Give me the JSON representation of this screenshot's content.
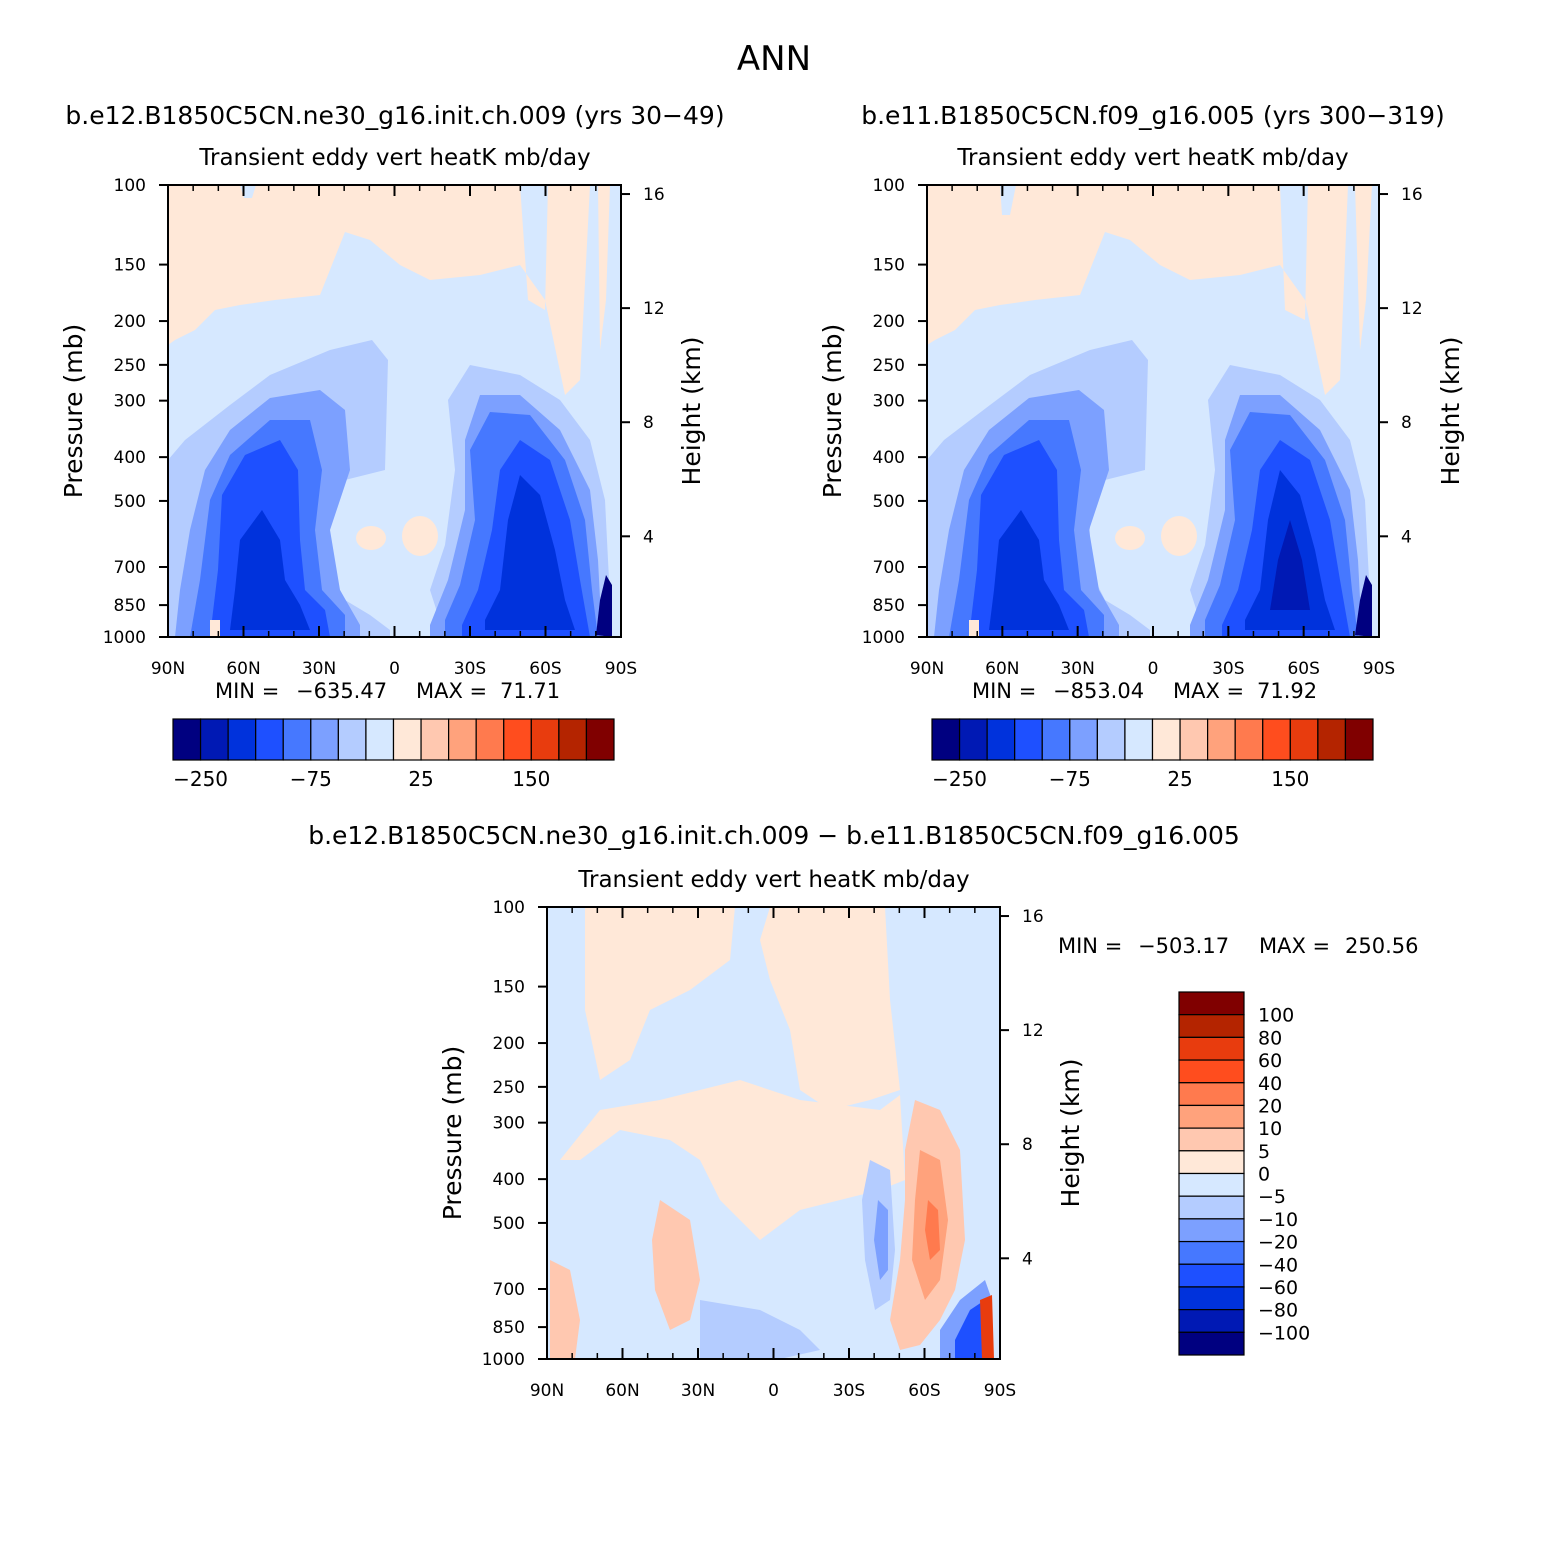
{
  "figure": {
    "title": "ANN"
  },
  "chart_data": [
    {
      "type": "heatmap",
      "id": "left",
      "case_title": "b.e12.B1850C5CN.ne30_g16.init.ch.009 (yrs 30−49)",
      "title": "Transient eddy vert heatK mb/day",
      "ylabel": "Pressure (mb)",
      "ylabel_right": "Height (km)",
      "x_ticks": [
        "90N",
        "60N",
        "30N",
        "0",
        "30S",
        "60S",
        "90S"
      ],
      "x_values": [
        90,
        60,
        30,
        0,
        -30,
        -60,
        -90
      ],
      "pressure_ticks": [
        "100",
        "150",
        "200",
        "250",
        "300",
        "400",
        "500",
        "700",
        "850",
        "1000"
      ],
      "pressure_values": [
        100,
        150,
        200,
        250,
        300,
        400,
        500,
        700,
        850,
        1000
      ],
      "height_ticks": [
        "16",
        "12",
        "8",
        "4"
      ],
      "height_values": [
        16,
        12,
        8,
        4
      ],
      "stats": {
        "min_label": "MIN =",
        "min": "−635.47",
        "max_label": "MAX =",
        "max": "71.71"
      },
      "colorbar": {
        "levels": [
          -250,
          -200,
          -150,
          -100,
          -75,
          -50,
          -25,
          0,
          25,
          50,
          75,
          100,
          150,
          200,
          250
        ],
        "labels": [
          "−250",
          "−75",
          "25",
          "150"
        ],
        "colors": [
          "#000080",
          "#0019b4",
          "#0032dc",
          "#1e50ff",
          "#4678ff",
          "#7ca0ff",
          "#b4ccff",
          "#d6e8ff",
          "#ffe8d8",
          "#ffc8b0",
          "#ffa27c",
          "#ff7a4e",
          "#ff4d1e",
          "#e83c0e",
          "#b42400",
          "#800000"
        ]
      }
    },
    {
      "type": "heatmap",
      "id": "right",
      "case_title": "b.e11.B1850C5CN.f09_g16.005 (yrs 300−319)",
      "title": "Transient eddy vert heatK mb/day",
      "ylabel": "Pressure (mb)",
      "ylabel_right": "Height (km)",
      "x_ticks": [
        "90N",
        "60N",
        "30N",
        "0",
        "30S",
        "60S",
        "90S"
      ],
      "x_values": [
        90,
        60,
        30,
        0,
        -30,
        -60,
        -90
      ],
      "pressure_ticks": [
        "100",
        "150",
        "200",
        "250",
        "300",
        "400",
        "500",
        "700",
        "850",
        "1000"
      ],
      "pressure_values": [
        100,
        150,
        200,
        250,
        300,
        400,
        500,
        700,
        850,
        1000
      ],
      "height_ticks": [
        "16",
        "12",
        "8",
        "4"
      ],
      "height_values": [
        16,
        12,
        8,
        4
      ],
      "stats": {
        "min_label": "MIN =",
        "min": "−853.04",
        "max_label": "MAX =",
        "max": "71.92"
      },
      "colorbar": {
        "levels": [
          -250,
          -200,
          -150,
          -100,
          -75,
          -50,
          -25,
          0,
          25,
          50,
          75,
          100,
          150,
          200,
          250
        ],
        "labels": [
          "−250",
          "−75",
          "25",
          "150"
        ],
        "colors": [
          "#000080",
          "#0019b4",
          "#0032dc",
          "#1e50ff",
          "#4678ff",
          "#7ca0ff",
          "#b4ccff",
          "#d6e8ff",
          "#ffe8d8",
          "#ffc8b0",
          "#ffa27c",
          "#ff7a4e",
          "#ff4d1e",
          "#e83c0e",
          "#b42400",
          "#800000"
        ]
      }
    },
    {
      "type": "heatmap",
      "id": "diff",
      "case_title": "b.e12.B1850C5CN.ne30_g16.init.ch.009 − b.e11.B1850C5CN.f09_g16.005",
      "title": "Transient eddy vert heatK mb/day",
      "ylabel": "Pressure (mb)",
      "ylabel_right": "Height (km)",
      "x_ticks": [
        "90N",
        "60N",
        "30N",
        "0",
        "30S",
        "60S",
        "90S"
      ],
      "x_values": [
        90,
        60,
        30,
        0,
        -30,
        -60,
        -90
      ],
      "pressure_ticks": [
        "100",
        "150",
        "200",
        "250",
        "300",
        "400",
        "500",
        "700",
        "850",
        "1000"
      ],
      "pressure_values": [
        100,
        150,
        200,
        250,
        300,
        400,
        500,
        700,
        850,
        1000
      ],
      "height_ticks": [
        "16",
        "12",
        "8",
        "4"
      ],
      "height_values": [
        16,
        12,
        8,
        4
      ],
      "stats": {
        "min_label": "MIN =",
        "min": "−503.17",
        "max_label": "MAX =",
        "max": "250.56"
      },
      "colorbar": {
        "levels": [
          100,
          80,
          60,
          40,
          20,
          10,
          5,
          0,
          -5,
          -10,
          -20,
          -40,
          -60,
          -80,
          -100
        ],
        "labels": [
          "100",
          "80",
          "60",
          "40",
          "20",
          "10",
          "5",
          "0",
          "−5",
          "−10",
          "−20",
          "−40",
          "−60",
          "−80",
          "−100"
        ],
        "colors": [
          "#800000",
          "#b42400",
          "#e83c0e",
          "#ff4d1e",
          "#ff7a4e",
          "#ffa27c",
          "#ffc8b0",
          "#ffe8d8",
          "#d6e8ff",
          "#b4ccff",
          "#7ca0ff",
          "#4678ff",
          "#1e50ff",
          "#0032dc",
          "#0019b4",
          "#000080"
        ]
      }
    }
  ]
}
